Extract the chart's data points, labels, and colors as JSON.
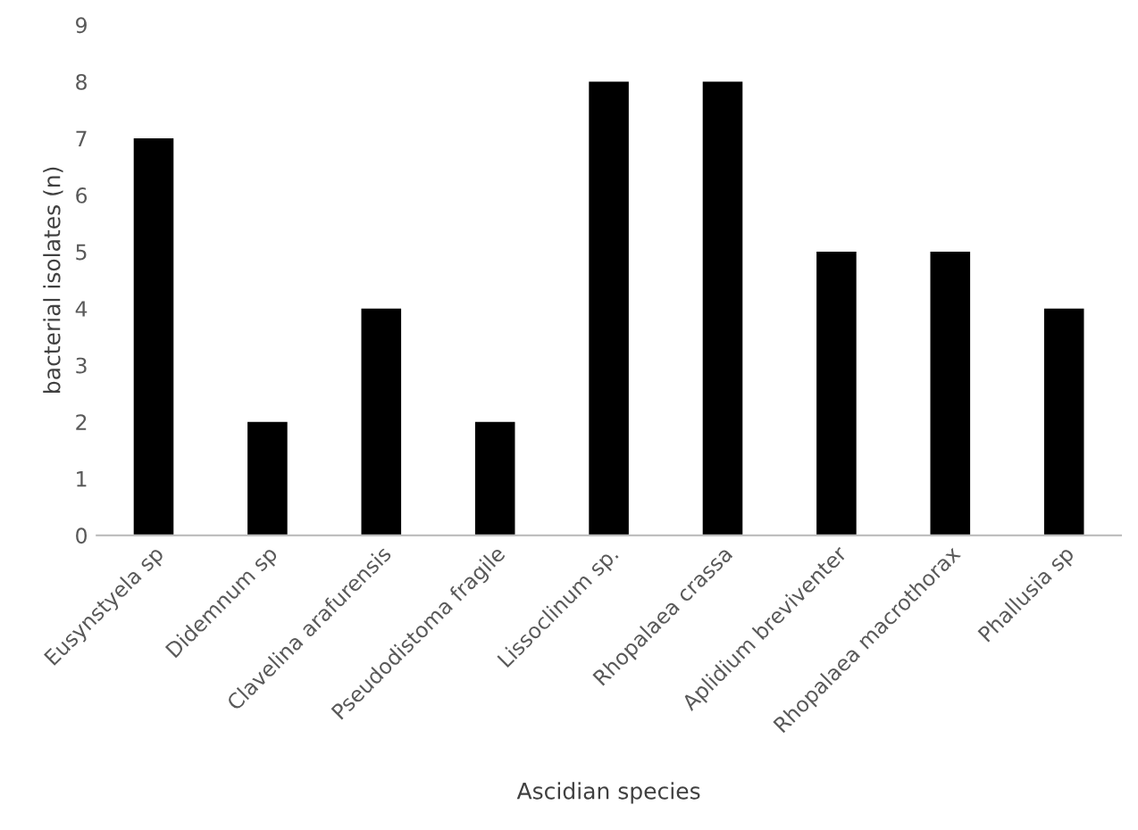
{
  "chart_data": {
    "type": "bar",
    "categories": [
      "Eusynstyela sp",
      "Didemnum sp",
      "Clavelina arafurensis",
      "Pseudodistoma fragile",
      "Lissoclinum sp.",
      "Rhopalaea crassa",
      "Aplidium breviventer",
      "Rhopalaea macrothorax",
      "Phallusia sp"
    ],
    "values": [
      7,
      2,
      4,
      2,
      8,
      8,
      5,
      5,
      4
    ],
    "color": "#000000",
    "xlabel": "Ascidian species",
    "ylabel": "bacterial isolates (n)",
    "ylim": [
      0,
      9
    ],
    "yticks": [
      0,
      1,
      2,
      3,
      4,
      5,
      6,
      7,
      8,
      9
    ],
    "grid": false
  }
}
